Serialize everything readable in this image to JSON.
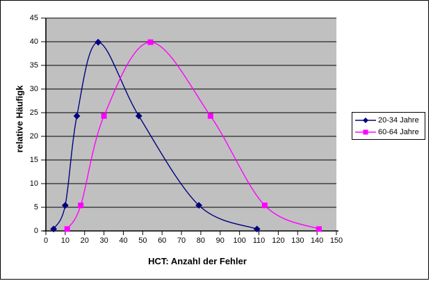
{
  "window": {
    "background": "#FFFFFF",
    "border_color": "#000000"
  },
  "chart_data": {
    "type": "line",
    "smooth": true,
    "title": "",
    "xlabel": "HCT: Anzahl der Fehler",
    "ylabel": "relative Häufigk",
    "xlim": [
      0,
      150
    ],
    "x_tick_step": 10,
    "ylim": [
      0,
      45
    ],
    "y_tick_step": 5,
    "grid": "horizontal-only",
    "plot_background": "#C0C0C0",
    "gridline_color": "#000000",
    "axis_color": "#000000",
    "legend_position": "right",
    "series": [
      {
        "name": "20-34 Jahre",
        "color": "#000080",
        "marker": "diamond",
        "points": [
          [
            4,
            0.4
          ],
          [
            10,
            5.4
          ],
          [
            16,
            24.3
          ],
          [
            27,
            39.9
          ],
          [
            48,
            24.3
          ],
          [
            79,
            5.4
          ],
          [
            109,
            0.4
          ]
        ]
      },
      {
        "name": "60-64 Jahre",
        "color": "#FF00FF",
        "marker": "square",
        "points": [
          [
            11,
            0.4
          ],
          [
            18,
            5.4
          ],
          [
            30,
            24.3
          ],
          [
            54,
            39.9
          ],
          [
            85,
            24.3
          ],
          [
            113,
            5.4
          ],
          [
            141,
            0.4
          ]
        ]
      }
    ]
  }
}
